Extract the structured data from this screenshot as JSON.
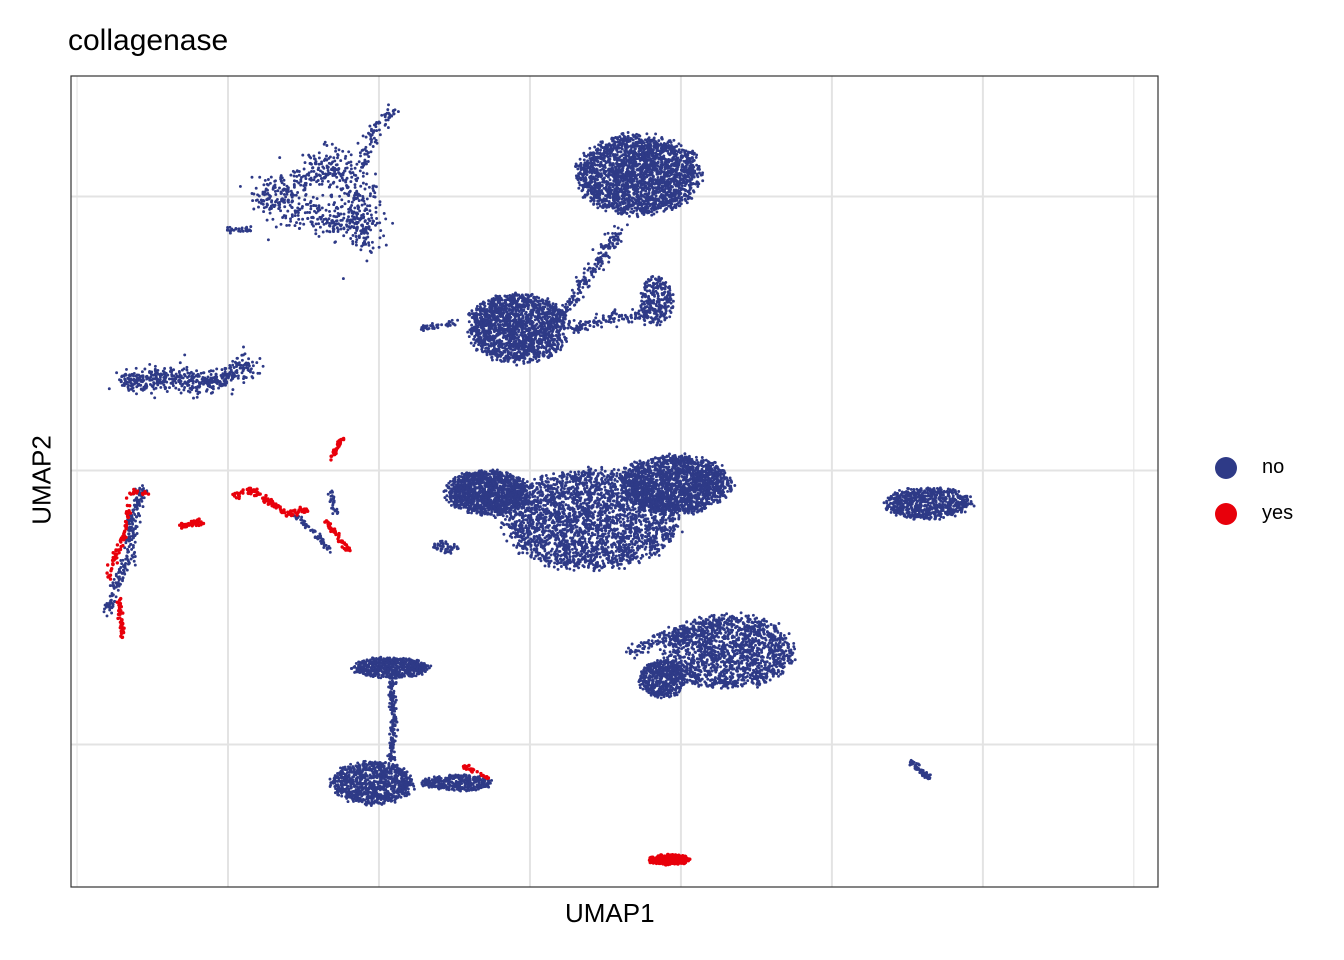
{
  "chart_data": {
    "type": "scatter",
    "title": "collagenase",
    "xlabel": "UMAP1",
    "ylabel": "UMAP2",
    "xlim": [
      -7.6,
      10.4
    ],
    "ylim": [
      -7.6,
      7.2
    ],
    "grid": true,
    "x_tick_labels": false,
    "y_tick_labels": false,
    "legend_position": "right",
    "series": [
      {
        "name": "no",
        "color": "#2E3A87"
      },
      {
        "name": "yes",
        "color": "#E8000B"
      }
    ],
    "clusters": [
      {
        "series": "no",
        "points": 700,
        "shape": "polyline",
        "width": 0.35,
        "path": [
          [
            -4.4,
            5.0
          ],
          [
            -4.0,
            5.2
          ],
          [
            -3.3,
            5.6
          ],
          [
            -3.0,
            5.4
          ],
          [
            -2.8,
            4.9
          ],
          [
            -2.8,
            4.2
          ],
          [
            -3.0,
            4.6
          ],
          [
            -3.6,
            4.6
          ],
          [
            -4.4,
            5.0
          ]
        ]
      },
      {
        "series": "no",
        "points": 90,
        "shape": "polyline",
        "width": 0.12,
        "path": [
          [
            -2.8,
            5.4
          ],
          [
            -2.6,
            6.2
          ],
          [
            -2.2,
            6.6
          ]
        ]
      },
      {
        "series": "no",
        "points": 30,
        "shape": "polyline",
        "width": 0.06,
        "path": [
          [
            -5.0,
            4.4
          ],
          [
            -4.6,
            4.4
          ]
        ]
      },
      {
        "series": "no",
        "points": 520,
        "shape": "polyline",
        "width": 0.22,
        "path": [
          [
            -6.8,
            1.6
          ],
          [
            -6.0,
            1.7
          ],
          [
            -5.3,
            1.6
          ],
          [
            -4.9,
            1.8
          ],
          [
            -4.6,
            1.9
          ]
        ]
      },
      {
        "series": "no",
        "points": 2300,
        "shape": "ellipse",
        "center": [
          1.8,
          5.4
        ],
        "rx": 1.05,
        "ry": 0.75
      },
      {
        "series": "no",
        "points": 1700,
        "shape": "ellipse",
        "center": [
          -0.2,
          2.6
        ],
        "rx": 0.85,
        "ry": 0.65
      },
      {
        "series": "no",
        "points": 180,
        "shape": "polyline",
        "width": 0.12,
        "path": [
          [
            0.5,
            2.8
          ],
          [
            1.0,
            3.6
          ],
          [
            1.5,
            4.4
          ]
        ]
      },
      {
        "series": "no",
        "points": 260,
        "shape": "ellipse",
        "center": [
          2.1,
          3.1
        ],
        "rx": 0.28,
        "ry": 0.45
      },
      {
        "series": "no",
        "points": 120,
        "shape": "polyline",
        "width": 0.1,
        "path": [
          [
            0.7,
            2.6
          ],
          [
            1.4,
            2.8
          ],
          [
            1.9,
            2.8
          ]
        ]
      },
      {
        "series": "no",
        "points": 40,
        "shape": "polyline",
        "width": 0.05,
        "path": [
          [
            -1.8,
            2.6
          ],
          [
            -1.2,
            2.7
          ]
        ]
      },
      {
        "series": "no",
        "points": 1300,
        "shape": "ellipse",
        "center": [
          -0.7,
          -0.4
        ],
        "rx": 0.7,
        "ry": 0.42
      },
      {
        "series": "no",
        "points": 2600,
        "shape": "ellipse",
        "center": [
          1.0,
          -0.9
        ],
        "rx": 1.5,
        "ry": 0.95
      },
      {
        "series": "no",
        "points": 1800,
        "shape": "ellipse",
        "center": [
          2.4,
          -0.25
        ],
        "rx": 0.95,
        "ry": 0.55
      },
      {
        "series": "no",
        "points": 1500,
        "shape": "ellipse",
        "center": [
          3.3,
          -3.3
        ],
        "rx": 1.1,
        "ry": 0.7
      },
      {
        "series": "no",
        "points": 500,
        "shape": "ellipse",
        "center": [
          2.2,
          -3.8
        ],
        "rx": 0.4,
        "ry": 0.35
      },
      {
        "series": "no",
        "points": 120,
        "shape": "polyline",
        "width": 0.15,
        "path": [
          [
            1.7,
            -3.3
          ],
          [
            2.1,
            -3.1
          ],
          [
            2.6,
            -3.0
          ]
        ]
      },
      {
        "series": "no",
        "points": 650,
        "shape": "ellipse",
        "center": [
          -2.3,
          -3.6
        ],
        "rx": 0.65,
        "ry": 0.2
      },
      {
        "series": "no",
        "points": 160,
        "shape": "polyline",
        "width": 0.06,
        "path": [
          [
            -2.3,
            -3.8
          ],
          [
            -2.25,
            -4.6
          ],
          [
            -2.3,
            -5.3
          ]
        ]
      },
      {
        "series": "no",
        "points": 950,
        "shape": "ellipse",
        "center": [
          -2.6,
          -5.7
        ],
        "rx": 0.7,
        "ry": 0.4
      },
      {
        "series": "no",
        "points": 350,
        "shape": "ellipse",
        "center": [
          -1.2,
          -5.7
        ],
        "rx": 0.6,
        "ry": 0.15
      },
      {
        "series": "no",
        "points": 700,
        "shape": "ellipse",
        "center": [
          6.6,
          -0.6
        ],
        "rx": 0.75,
        "ry": 0.3
      },
      {
        "series": "no",
        "points": 70,
        "shape": "polyline",
        "width": 0.05,
        "path": [
          [
            6.3,
            -5.3
          ],
          [
            6.6,
            -5.6
          ]
        ]
      },
      {
        "series": "no",
        "points": 50,
        "shape": "ellipse",
        "center": [
          -1.4,
          -1.4
        ],
        "rx": 0.22,
        "ry": 0.12
      },
      {
        "series": "no",
        "points": 240,
        "shape": "polyline",
        "width": 0.1,
        "path": [
          [
            -7.0,
            -2.6
          ],
          [
            -6.85,
            -2.1
          ],
          [
            -6.65,
            -1.6
          ],
          [
            -6.6,
            -1.0
          ],
          [
            -6.4,
            -0.3
          ]
        ]
      },
      {
        "series": "no",
        "points": 60,
        "shape": "polyline",
        "width": 0.05,
        "path": [
          [
            -3.9,
            -0.8
          ],
          [
            -3.5,
            -1.2
          ],
          [
            -3.3,
            -1.5
          ]
        ]
      },
      {
        "series": "no",
        "points": 30,
        "shape": "polyline",
        "width": 0.04,
        "path": [
          [
            -3.3,
            -0.4
          ],
          [
            -3.2,
            -0.8
          ]
        ]
      },
      {
        "series": "yes",
        "points": 260,
        "shape": "ellipse",
        "center": [
          2.3,
          -7.1
        ],
        "rx": 0.35,
        "ry": 0.1
      },
      {
        "series": "yes",
        "points": 110,
        "shape": "polyline",
        "width": 0.06,
        "path": [
          [
            -4.9,
            -0.45
          ],
          [
            -4.6,
            -0.35
          ],
          [
            -4.3,
            -0.6
          ],
          [
            -4.0,
            -0.8
          ],
          [
            -3.7,
            -0.7
          ]
        ]
      },
      {
        "series": "yes",
        "points": 40,
        "shape": "polyline",
        "width": 0.05,
        "path": [
          [
            -5.8,
            -1.0
          ],
          [
            -5.4,
            -0.95
          ]
        ]
      },
      {
        "series": "yes",
        "points": 80,
        "shape": "polyline",
        "width": 0.05,
        "path": [
          [
            -7.0,
            -2.0
          ],
          [
            -6.85,
            -1.5
          ],
          [
            -6.7,
            -1.1
          ],
          [
            -6.6,
            -0.4
          ],
          [
            -6.3,
            -0.4
          ]
        ]
      },
      {
        "series": "yes",
        "points": 40,
        "shape": "polyline",
        "width": 0.04,
        "path": [
          [
            -6.8,
            -2.3
          ],
          [
            -6.75,
            -3.1
          ]
        ]
      },
      {
        "series": "yes",
        "points": 45,
        "shape": "polyline",
        "width": 0.05,
        "path": [
          [
            -3.4,
            -0.9
          ],
          [
            -3.0,
            -1.45
          ]
        ]
      },
      {
        "series": "yes",
        "points": 35,
        "shape": "polyline",
        "width": 0.04,
        "path": [
          [
            -3.3,
            0.2
          ],
          [
            -3.1,
            0.6
          ]
        ]
      },
      {
        "series": "yes",
        "points": 25,
        "shape": "polyline",
        "width": 0.04,
        "path": [
          [
            -1.1,
            -5.4
          ],
          [
            -0.7,
            -5.6
          ]
        ]
      }
    ]
  },
  "legend": {
    "items": [
      {
        "label": "no",
        "color": "#2E3A87"
      },
      {
        "label": "yes",
        "color": "#E8000B"
      }
    ]
  }
}
